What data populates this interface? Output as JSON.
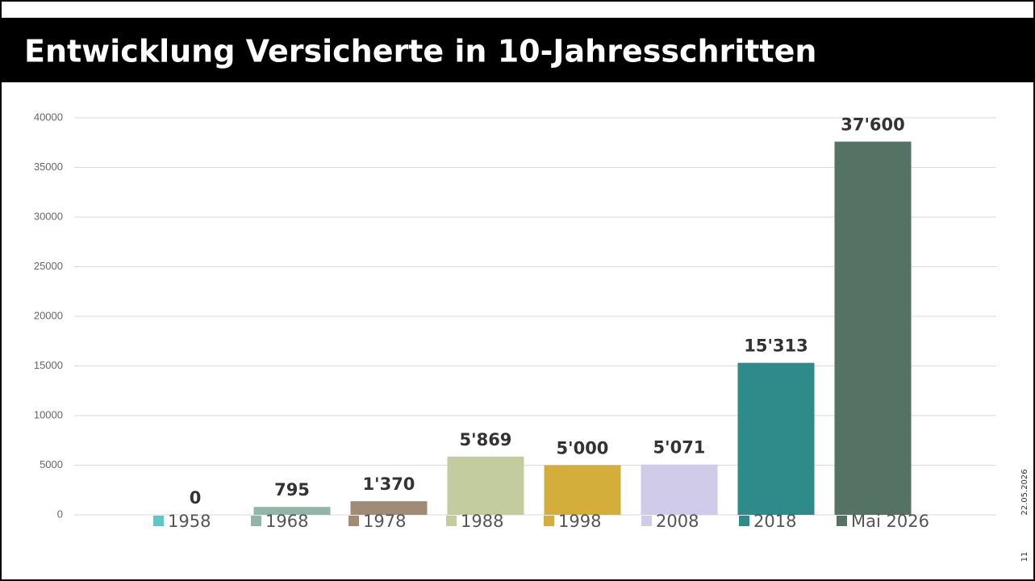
{
  "chart_data": {
    "type": "bar",
    "title": "Entwicklung Versicherte in 10-Jahresschritten",
    "categories": [
      "1958",
      "1968",
      "1978",
      "1988",
      "1998",
      "2008",
      "2018",
      "Mai 2026"
    ],
    "values": [
      0,
      795,
      1370,
      5869,
      5000,
      5071,
      15313,
      37600
    ],
    "value_labels": [
      "0",
      "795",
      "1'370",
      "5'869",
      "5'000",
      "5'071",
      "15'313",
      "37'600"
    ],
    "colors": [
      "#5ec8c8",
      "#93b5a8",
      "#a08b77",
      "#c2cc9f",
      "#d4ae3a",
      "#cfcbe8",
      "#2e8b8a",
      "#557365"
    ],
    "ylim": [
      0,
      40000
    ],
    "yticks": [
      0,
      5000,
      10000,
      15000,
      20000,
      25000,
      30000,
      35000,
      40000
    ],
    "grid": true,
    "legend": "bottom"
  },
  "footer": {
    "date": "22.05.2026",
    "page": "11"
  }
}
